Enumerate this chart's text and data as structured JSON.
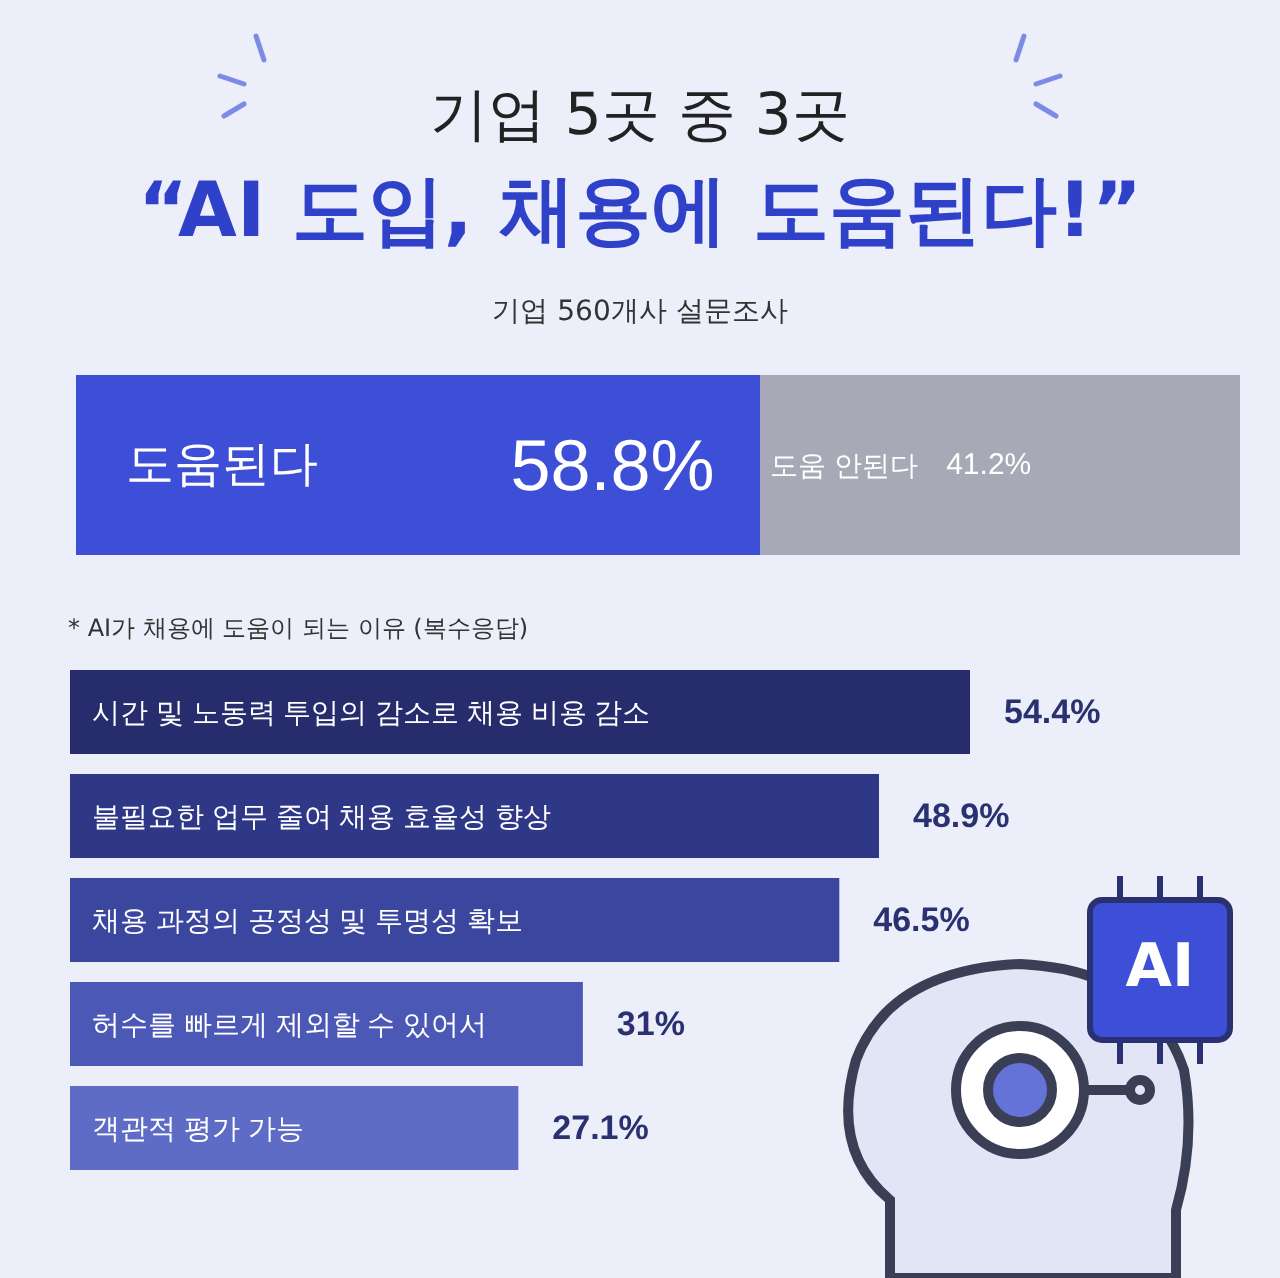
{
  "chart_data": [
    {
      "type": "bar",
      "orientation": "horizontal",
      "stacked": true,
      "title": "기업 5곳 중 3곳",
      "subtitle": "“AI 도입, 채용에 도움된다!”",
      "annotations": [
        "기업 560개사 설문조사"
      ],
      "categories": [
        null
      ],
      "series": [
        {
          "name": "도움된다",
          "color": "#3d4fd6",
          "values": [
            58.8
          ],
          "value_labels": [
            "58.8%"
          ]
        },
        {
          "name": "도움 안된다",
          "color": "#a7a9b6",
          "values": [
            41.2
          ],
          "value_labels": [
            "41.2%"
          ]
        }
      ]
    },
    {
      "type": "bar",
      "orientation": "horizontal",
      "title": "* AI가 채용에 도움이 되는 이유 (복수응답)",
      "annotations": [
        "AI"
      ],
      "categories": [
        "시간 및 노동력 투입의 감소로 채용 비용 감소",
        "불필요한 업무 줄여 채용 효율성 향상",
        "채용 과정의 공정성 및 투명성 확보",
        "허수를 빠르게 제외할 수 있어서",
        "객관적 평가 가능"
      ],
      "values": [
        54.4,
        48.9,
        46.5,
        31,
        27.1
      ],
      "colors": [
        "#262c6c",
        "#2f3887",
        "#3b469f",
        "#4b58b6",
        "#5f6cc6"
      ],
      "value_labels": [
        "54.4%",
        "48.9%",
        "46.5%",
        "31%",
        "27.1%"
      ]
    }
  ]
}
